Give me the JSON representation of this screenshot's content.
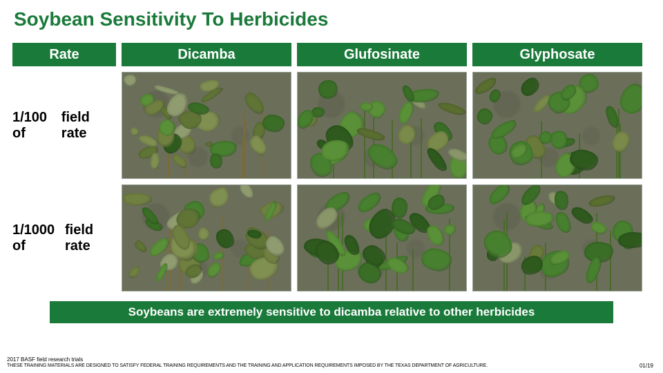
{
  "title": {
    "text": "Soybean Sensitivity To Herbicides",
    "color": "#1a7a3a",
    "fontsize": 28
  },
  "headers": {
    "bg": "#1a7a3a",
    "text_color": "#ffffff",
    "items": [
      "Rate",
      "Dicamba",
      "Glufosinate",
      "Glyphosate"
    ]
  },
  "rows": {
    "labels": [
      "1/100 of\nfield rate",
      "1/1000 of\nfield rate"
    ],
    "label_color": "#000000"
  },
  "cells": {
    "soil_color": "#6b6f5a",
    "leaf_colors_healthy": [
      "#2e5a1e",
      "#3a6e26",
      "#47802e",
      "#5a9138"
    ],
    "leaf_colors_damaged": [
      "#6a7a3a",
      "#7a8a4a",
      "#5a6e30",
      "#8a966a"
    ],
    "damage_level": [
      [
        0.85,
        0.15,
        0.15
      ],
      [
        0.55,
        0.1,
        0.1
      ]
    ],
    "plant_density": [
      [
        28,
        26,
        24
      ],
      [
        34,
        26,
        24
      ]
    ]
  },
  "caption": {
    "text": "Soybeans are extremely sensitive to dicamba relative to other herbicides",
    "bg": "#1a7a3a",
    "text_color": "#ffffff"
  },
  "footer": {
    "line1": "2017 BASF field research trials",
    "line2": "THESE TRAINING MATERIALS ARE DESIGNED TO SATISFY FEDERAL TRAINING REQUIREMENTS AND THE TRAINING AND APPLICATION REQUIREMENTS IMPOSED BY THE TEXAS DEPARTMENT OF AGRICULTURE.",
    "page": "01/19"
  }
}
